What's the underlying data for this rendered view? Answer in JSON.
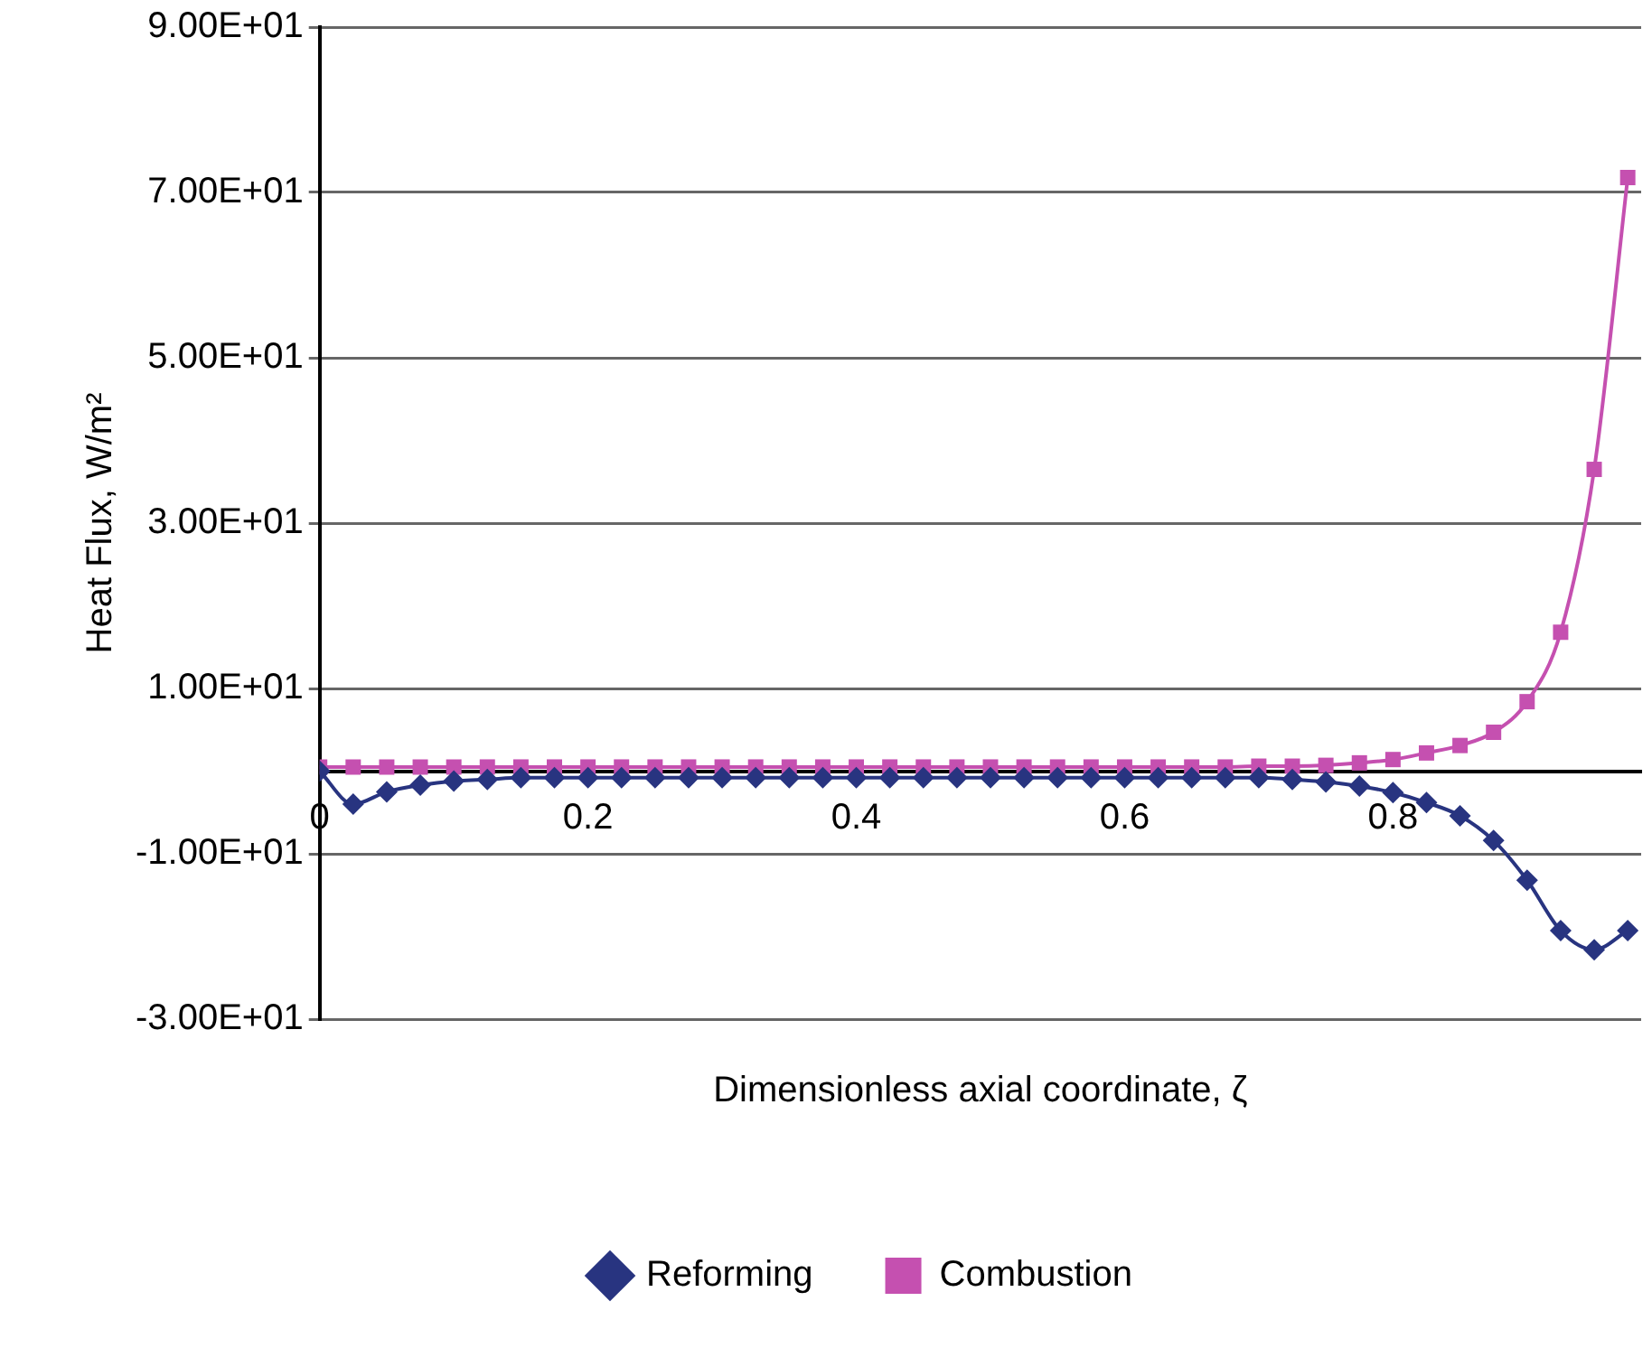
{
  "chart_data": {
    "type": "line",
    "xlabel": "Dimensionless axial coordinate, ζ",
    "ylabel": "Heat Flux, W/m²",
    "x": [
      0,
      0.025,
      0.05,
      0.075,
      0.1,
      0.125,
      0.15,
      0.175,
      0.2,
      0.225,
      0.25,
      0.275,
      0.3,
      0.325,
      0.35,
      0.375,
      0.4,
      0.425,
      0.45,
      0.475,
      0.5,
      0.525,
      0.55,
      0.575,
      0.6,
      0.625,
      0.65,
      0.675,
      0.7,
      0.725,
      0.75,
      0.775,
      0.8,
      0.825,
      0.85,
      0.875,
      0.9,
      0.925,
      0.95,
      0.975
    ],
    "xlim": [
      0,
      0.985
    ],
    "xticks": [
      0,
      0.2,
      0.4,
      0.6,
      0.8
    ],
    "ylim": [
      -30,
      90
    ],
    "yticks": [
      {
        "value": -30,
        "label": "-3.00E+01"
      },
      {
        "value": -10,
        "label": "-1.00E+01"
      },
      {
        "value": 10,
        "label": "1.00E+01"
      },
      {
        "value": 30,
        "label": "3.00E+01"
      },
      {
        "value": 50,
        "label": "5.00E+01"
      },
      {
        "value": 70,
        "label": "7.00E+01"
      },
      {
        "value": 90,
        "label": "9.00E+01"
      }
    ],
    "grid": "y",
    "legend": "bottom",
    "series": [
      {
        "name": "Reforming",
        "color": "#283480",
        "marker": "diamond",
        "values": [
          0,
          -4.0,
          -2.5,
          -1.7,
          -1.2,
          -1.0,
          -0.8,
          -0.8,
          -0.8,
          -0.8,
          -0.8,
          -0.8,
          -0.8,
          -0.8,
          -0.8,
          -0.8,
          -0.8,
          -0.8,
          -0.8,
          -0.8,
          -0.8,
          -0.8,
          -0.8,
          -0.8,
          -0.8,
          -0.8,
          -0.8,
          -0.8,
          -0.8,
          -1.0,
          -1.3,
          -1.8,
          -2.6,
          -3.8,
          -5.4,
          -8.4,
          -13.2,
          -19.3,
          -21.6,
          -19.3
        ]
      },
      {
        "name": "Combustion",
        "color": "#c550b0",
        "marker": "square",
        "values": [
          0.5,
          0.5,
          0.5,
          0.5,
          0.5,
          0.5,
          0.5,
          0.5,
          0.5,
          0.5,
          0.5,
          0.5,
          0.5,
          0.5,
          0.5,
          0.5,
          0.5,
          0.5,
          0.5,
          0.5,
          0.5,
          0.5,
          0.5,
          0.5,
          0.5,
          0.5,
          0.5,
          0.5,
          0.6,
          0.6,
          0.7,
          1.0,
          1.4,
          2.2,
          3.1,
          4.7,
          8.4,
          16.8,
          36.5,
          71.8
        ]
      }
    ]
  }
}
